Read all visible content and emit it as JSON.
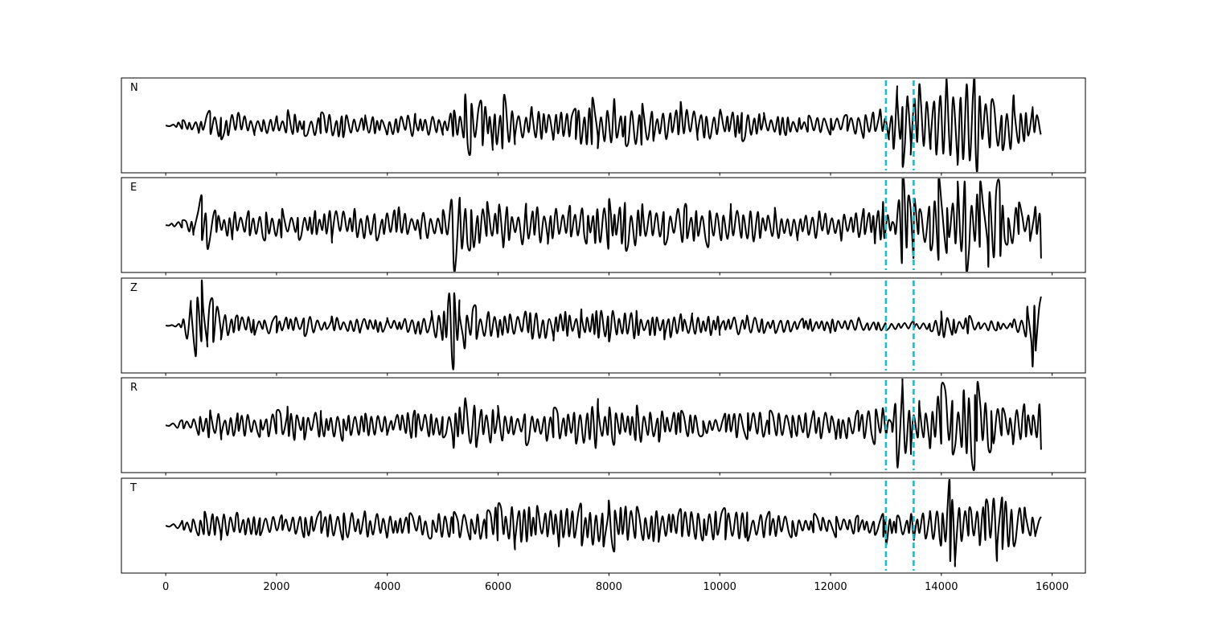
{
  "chart_data": {
    "type": "line",
    "title": "",
    "xlabel": "",
    "ylabel": "",
    "xlim": [
      -800,
      16600
    ],
    "x_ticks": [
      0,
      2000,
      4000,
      6000,
      8000,
      10000,
      12000,
      14000,
      16000
    ],
    "x_tick_labels": [
      "0",
      "2000",
      "4000",
      "6000",
      "8000",
      "10000",
      "12000",
      "14000",
      "16000"
    ],
    "n_samples": 15800,
    "marker_lines": [
      13000,
      13500
    ],
    "marker_color": "#17becf",
    "trace_color": "#000000",
    "grid": false,
    "legend": "none",
    "panels": [
      {
        "label": "N",
        "points": [
          [
            0,
            0
          ],
          [
            300,
            0.1
          ],
          [
            600,
            -0.15
          ],
          [
            800,
            0.3
          ],
          [
            1000,
            -0.3
          ],
          [
            1300,
            0.25
          ],
          [
            1600,
            -0.2
          ],
          [
            2000,
            0.2
          ],
          [
            2200,
            0.3
          ],
          [
            2500,
            -0.2
          ],
          [
            2800,
            0.25
          ],
          [
            3200,
            -0.25
          ],
          [
            3600,
            0.2
          ],
          [
            4000,
            -0.2
          ],
          [
            4500,
            0.25
          ],
          [
            5000,
            -0.2
          ],
          [
            5200,
            0.3
          ],
          [
            5400,
            0.6
          ],
          [
            5500,
            -0.6
          ],
          [
            5700,
            0.5
          ],
          [
            5900,
            -0.5
          ],
          [
            6100,
            0.6
          ],
          [
            6300,
            -0.4
          ],
          [
            6600,
            0.4
          ],
          [
            7000,
            -0.3
          ],
          [
            7400,
            0.35
          ],
          [
            7700,
            0.6
          ],
          [
            7800,
            -0.5
          ],
          [
            8100,
            0.55
          ],
          [
            8300,
            -0.4
          ],
          [
            8600,
            0.45
          ],
          [
            8800,
            -0.3
          ],
          [
            9300,
            0.5
          ],
          [
            9600,
            -0.3
          ],
          [
            10000,
            0.3
          ],
          [
            10400,
            -0.3
          ],
          [
            10800,
            0.25
          ],
          [
            11200,
            -0.2
          ],
          [
            11600,
            0.2
          ],
          [
            12000,
            -0.2
          ],
          [
            12300,
            0.2
          ],
          [
            12600,
            -0.25
          ],
          [
            12900,
            0.35
          ],
          [
            13050,
            -0.3
          ],
          [
            13200,
            0.8
          ],
          [
            13300,
            -0.9
          ],
          [
            13400,
            0.5
          ],
          [
            13450,
            -0.6
          ],
          [
            13600,
            0.9
          ],
          [
            13800,
            -0.5
          ],
          [
            14100,
            0.95
          ],
          [
            14300,
            -0.8
          ],
          [
            14600,
            1.05
          ],
          [
            14650,
            -1.0
          ],
          [
            14900,
            0.5
          ],
          [
            15100,
            -0.5
          ],
          [
            15300,
            0.65
          ],
          [
            15500,
            -0.3
          ],
          [
            15650,
            0.35
          ],
          [
            15800,
            -0.2
          ]
        ]
      },
      {
        "label": "E",
        "points": [
          [
            0,
            0
          ],
          [
            300,
            0.1
          ],
          [
            500,
            -0.2
          ],
          [
            650,
            0.65
          ],
          [
            750,
            -0.5
          ],
          [
            900,
            0.3
          ],
          [
            1200,
            -0.3
          ],
          [
            1500,
            0.3
          ],
          [
            1800,
            -0.3
          ],
          [
            2100,
            0.35
          ],
          [
            2400,
            -0.3
          ],
          [
            2700,
            0.3
          ],
          [
            3000,
            -0.35
          ],
          [
            3400,
            0.3
          ],
          [
            3800,
            -0.3
          ],
          [
            4200,
            0.35
          ],
          [
            4600,
            -0.3
          ],
          [
            5000,
            0.3
          ],
          [
            5200,
            -0.95
          ],
          [
            5300,
            0.55
          ],
          [
            5500,
            -0.5
          ],
          [
            5800,
            0.5
          ],
          [
            6100,
            -0.45
          ],
          [
            6500,
            0.45
          ],
          [
            6900,
            -0.4
          ],
          [
            7300,
            0.4
          ],
          [
            7600,
            -0.4
          ],
          [
            8000,
            0.55
          ],
          [
            8300,
            -0.5
          ],
          [
            8600,
            0.45
          ],
          [
            9000,
            -0.4
          ],
          [
            9400,
            0.4
          ],
          [
            9800,
            -0.45
          ],
          [
            10200,
            0.4
          ],
          [
            10600,
            -0.3
          ],
          [
            11000,
            0.35
          ],
          [
            11400,
            -0.3
          ],
          [
            11800,
            0.3
          ],
          [
            12200,
            -0.3
          ],
          [
            12600,
            0.35
          ],
          [
            12800,
            -0.4
          ],
          [
            12950,
            0.5
          ],
          [
            13150,
            0.0
          ],
          [
            13300,
            1.05
          ],
          [
            13400,
            0.6
          ],
          [
            13500,
            -0.7
          ],
          [
            13600,
            0.3
          ],
          [
            13800,
            -0.5
          ],
          [
            13950,
            1.05
          ],
          [
            14100,
            -0.6
          ],
          [
            14300,
            0.9
          ],
          [
            14450,
            -1.0
          ],
          [
            14700,
            0.95
          ],
          [
            14850,
            -0.9
          ],
          [
            15050,
            0.9
          ],
          [
            15200,
            -0.4
          ],
          [
            15400,
            0.5
          ],
          [
            15600,
            -0.3
          ],
          [
            15700,
            0.4
          ],
          [
            15800,
            -0.75
          ]
        ]
      },
      {
        "label": "Z",
        "points": [
          [
            0,
            0
          ],
          [
            300,
            0.05
          ],
          [
            450,
            0.5
          ],
          [
            550,
            -0.6
          ],
          [
            650,
            1.0
          ],
          [
            750,
            -0.4
          ],
          [
            850,
            0.55
          ],
          [
            1000,
            -0.3
          ],
          [
            1300,
            0.2
          ],
          [
            1600,
            -0.2
          ],
          [
            2000,
            0.2
          ],
          [
            2500,
            -0.2
          ],
          [
            3000,
            0.2
          ],
          [
            3500,
            -0.15
          ],
          [
            4000,
            0.15
          ],
          [
            4500,
            -0.15
          ],
          [
            4800,
            0.3
          ],
          [
            5000,
            -0.3
          ],
          [
            5100,
            0.55
          ],
          [
            5200,
            -0.85
          ],
          [
            5300,
            0.55
          ],
          [
            5400,
            -0.5
          ],
          [
            5600,
            0.4
          ],
          [
            6000,
            -0.25
          ],
          [
            6500,
            0.3
          ],
          [
            7000,
            -0.3
          ],
          [
            7500,
            0.35
          ],
          [
            8000,
            -0.35
          ],
          [
            8500,
            0.3
          ],
          [
            9000,
            -0.3
          ],
          [
            9500,
            0.25
          ],
          [
            10000,
            -0.2
          ],
          [
            10500,
            0.2
          ],
          [
            11000,
            -0.15
          ],
          [
            11500,
            0.15
          ],
          [
            12000,
            -0.15
          ],
          [
            12500,
            0.15
          ],
          [
            13000,
            -0.1
          ],
          [
            13500,
            0.1
          ],
          [
            13800,
            -0.1
          ],
          [
            14000,
            0.3
          ],
          [
            14200,
            -0.2
          ],
          [
            14500,
            0.2
          ],
          [
            15000,
            -0.1
          ],
          [
            15300,
            0.1
          ],
          [
            15550,
            0.4
          ],
          [
            15650,
            -0.9
          ],
          [
            15700,
            -0.5
          ],
          [
            15800,
            0.65
          ]
        ]
      },
      {
        "label": "R",
        "points": [
          [
            0,
            0
          ],
          [
            300,
            0.1
          ],
          [
            600,
            -0.2
          ],
          [
            800,
            0.3
          ],
          [
            1000,
            -0.3
          ],
          [
            1300,
            0.25
          ],
          [
            1700,
            -0.25
          ],
          [
            2000,
            0.3
          ],
          [
            2200,
            0.4
          ],
          [
            2500,
            -0.3
          ],
          [
            2800,
            0.3
          ],
          [
            3200,
            -0.3
          ],
          [
            3600,
            0.25
          ],
          [
            4000,
            -0.2
          ],
          [
            4500,
            0.3
          ],
          [
            5000,
            -0.25
          ],
          [
            5200,
            -0.5
          ],
          [
            5300,
            0.35
          ],
          [
            5400,
            0.55
          ],
          [
            5600,
            -0.45
          ],
          [
            6000,
            0.4
          ],
          [
            6500,
            -0.4
          ],
          [
            7000,
            0.35
          ],
          [
            7400,
            -0.35
          ],
          [
            7800,
            0.55
          ],
          [
            8100,
            -0.4
          ],
          [
            8500,
            0.4
          ],
          [
            8900,
            -0.35
          ],
          [
            9300,
            0.3
          ],
          [
            9700,
            -0.2
          ],
          [
            10100,
            0.25
          ],
          [
            10500,
            -0.3
          ],
          [
            10900,
            0.3
          ],
          [
            11300,
            -0.25
          ],
          [
            11700,
            0.3
          ],
          [
            12100,
            -0.3
          ],
          [
            12500,
            0.3
          ],
          [
            12800,
            -0.4
          ],
          [
            12950,
            0.35
          ],
          [
            13100,
            0.05
          ],
          [
            13200,
            -0.8
          ],
          [
            13300,
            0.9
          ],
          [
            13450,
            -0.6
          ],
          [
            13600,
            0.5
          ],
          [
            13800,
            -0.5
          ],
          [
            14000,
            0.85
          ],
          [
            14200,
            -0.6
          ],
          [
            14400,
            0.75
          ],
          [
            14600,
            -0.9
          ],
          [
            14650,
            0.95
          ],
          [
            14900,
            -0.5
          ],
          [
            15100,
            0.35
          ],
          [
            15300,
            -0.4
          ],
          [
            15500,
            0.45
          ],
          [
            15650,
            0.2
          ],
          [
            15800,
            -0.55
          ]
        ]
      },
      {
        "label": "T",
        "points": [
          [
            0,
            0
          ],
          [
            300,
            0.1
          ],
          [
            600,
            -0.2
          ],
          [
            700,
            0.3
          ],
          [
            1000,
            -0.3
          ],
          [
            1300,
            0.25
          ],
          [
            1700,
            -0.2
          ],
          [
            2100,
            0.2
          ],
          [
            2500,
            -0.25
          ],
          [
            2800,
            0.3
          ],
          [
            3200,
            -0.3
          ],
          [
            3600,
            0.3
          ],
          [
            4000,
            -0.25
          ],
          [
            4400,
            0.25
          ],
          [
            4800,
            -0.25
          ],
          [
            5200,
            0.3
          ],
          [
            5500,
            -0.3
          ],
          [
            5800,
            0.3
          ],
          [
            6000,
            0.45
          ],
          [
            6300,
            -0.5
          ],
          [
            6700,
            0.4
          ],
          [
            7100,
            -0.4
          ],
          [
            7500,
            0.45
          ],
          [
            7900,
            -0.45
          ],
          [
            8000,
            0.55
          ],
          [
            8100,
            -0.55
          ],
          [
            8500,
            0.4
          ],
          [
            8900,
            -0.35
          ],
          [
            9300,
            0.35
          ],
          [
            9700,
            -0.3
          ],
          [
            10100,
            0.35
          ],
          [
            10500,
            -0.3
          ],
          [
            10900,
            0.3
          ],
          [
            11300,
            -0.25
          ],
          [
            11700,
            0.25
          ],
          [
            12100,
            -0.25
          ],
          [
            12500,
            0.2
          ],
          [
            12800,
            -0.2
          ],
          [
            12950,
            0.25
          ],
          [
            13000,
            -0.4
          ],
          [
            13200,
            0.2
          ],
          [
            13500,
            -0.3
          ],
          [
            13800,
            0.3
          ],
          [
            14000,
            -0.4
          ],
          [
            14150,
            1.0
          ],
          [
            14250,
            -0.75
          ],
          [
            14500,
            0.35
          ],
          [
            14700,
            -0.4
          ],
          [
            14800,
            0.5
          ],
          [
            15000,
            -0.75
          ],
          [
            15100,
            0.6
          ],
          [
            15300,
            -0.4
          ],
          [
            15500,
            0.4
          ],
          [
            15700,
            -0.2
          ],
          [
            15800,
            0.2
          ]
        ]
      }
    ]
  }
}
